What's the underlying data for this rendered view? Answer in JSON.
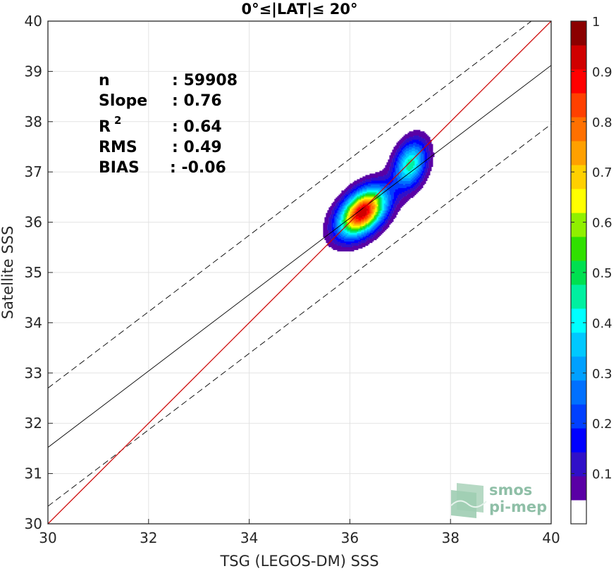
{
  "chart_data": {
    "type": "contour-scatter",
    "title": "0°≤|LAT|≤ 20°",
    "xlabel": "TSG (LEGOS-DM) SSS",
    "ylabel": "Satellite SSS",
    "xlim": [
      30,
      40
    ],
    "ylim": [
      30,
      40
    ],
    "xticks": [
      "30",
      "32",
      "34",
      "36",
      "38",
      "40"
    ],
    "yticks": [
      "30",
      "31",
      "32",
      "33",
      "34",
      "35",
      "36",
      "37",
      "38",
      "39",
      "40"
    ],
    "grid": true,
    "stats": {
      "n_label": "n",
      "n_value": ": 59908",
      "slope_label": "Slope",
      "slope_value": ": 0.76",
      "r2_label": "R",
      "r2_sup": "2",
      "r2_value": ": 0.64",
      "rms_label": "RMS",
      "rms_value": ": 0.49",
      "bias_label": "BIAS",
      "bias_value": ": -0.06"
    },
    "lines": {
      "identity": {
        "slope": 1,
        "intercept": 0,
        "color": "#cc0000"
      },
      "regression": {
        "slope": 0.76,
        "intercept": 8.72,
        "color": "#000000"
      },
      "upper_envelope": {
        "slope": 0.76,
        "intercept": 9.9,
        "style": "dashed"
      },
      "lower_envelope": {
        "slope": 0.76,
        "intercept": 7.55,
        "style": "dashed"
      }
    },
    "density": {
      "peaks": [
        {
          "x": 36.25,
          "y": 36.2,
          "sx": 0.32,
          "sy": 0.32,
          "rho": 0.45,
          "amp": 1.0
        },
        {
          "x": 37.2,
          "y": 37.15,
          "sx": 0.22,
          "sy": 0.32,
          "rho": 0.3,
          "amp": 0.48
        }
      ],
      "levels": [
        0.05,
        0.1,
        0.15,
        0.2,
        0.25,
        0.3,
        0.35,
        0.4,
        0.45,
        0.5,
        0.55,
        0.6,
        0.65,
        0.7,
        0.75,
        0.8,
        0.85,
        0.9,
        0.95
      ]
    },
    "colorbar": {
      "range": [
        0,
        1
      ],
      "ticks": [
        "0.1",
        "0.2",
        "0.3",
        "0.4",
        "0.5",
        "0.6",
        "0.7",
        "0.8",
        "0.9",
        "1"
      ],
      "colors": [
        "#ffffff",
        "#5a00a5",
        "#3010c8",
        "#0000ff",
        "#0040ff",
        "#0070ff",
        "#00a0ff",
        "#00c8ff",
        "#00ffff",
        "#00f0a0",
        "#00e050",
        "#30e000",
        "#90f000",
        "#ffff00",
        "#ffd000",
        "#ffa000",
        "#ff7000",
        "#ff4000",
        "#ff0000",
        "#d00000",
        "#8b0000"
      ]
    },
    "logo": {
      "line1": "smos",
      "line2": "pi-mep"
    }
  }
}
